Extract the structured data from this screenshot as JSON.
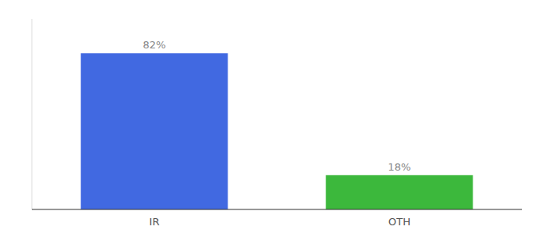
{
  "chart_data": {
    "type": "bar",
    "categories": [
      "IR",
      "OTH"
    ],
    "values": [
      82,
      18
    ],
    "value_labels": [
      "82%",
      "18%"
    ],
    "data_labels": true,
    "colors": [
      "#4169e1",
      "#3cb83c"
    ],
    "ylim": [
      0,
      100
    ],
    "tick_labels": "x",
    "grid": false
  }
}
